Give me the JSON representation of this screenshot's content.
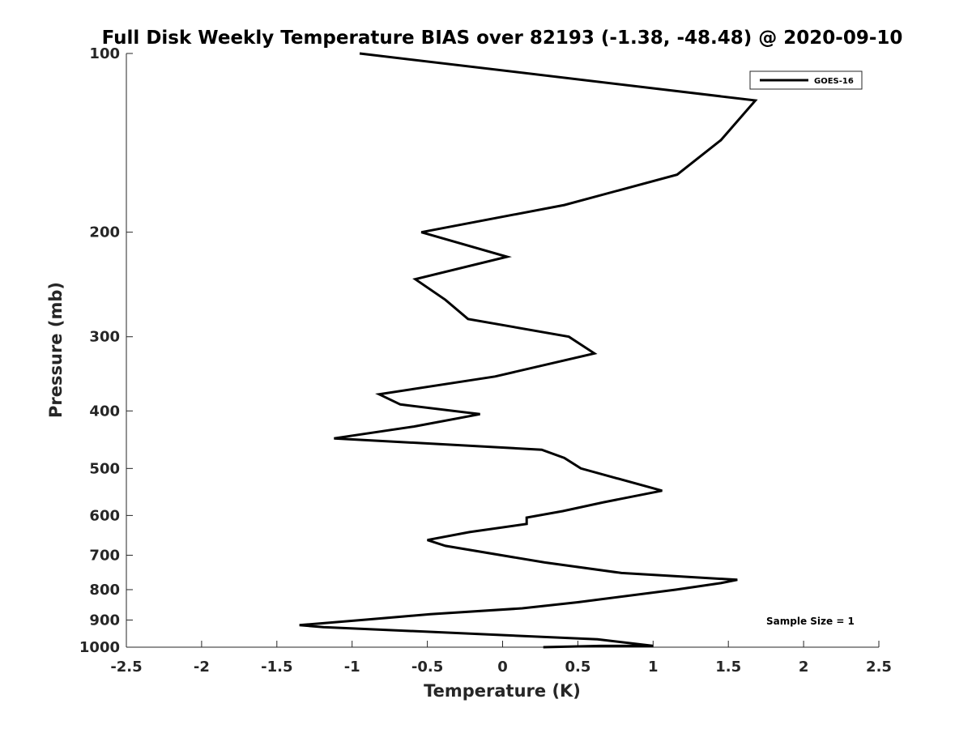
{
  "chart_data": {
    "type": "line",
    "title": "Full Disk Weekly Temperature BIAS over 82193 (-1.38, -48.48) @ 2020-09-10",
    "xlabel": "Temperature (K)",
    "ylabel": "Pressure (mb)",
    "xlim": [
      -2.5,
      2.5
    ],
    "ylim": [
      1000,
      100
    ],
    "y_scale": "log",
    "y_reversed": true,
    "grid": false,
    "xticks": [
      -2.5,
      -2,
      -1.5,
      -1,
      -0.5,
      0,
      0.5,
      1,
      1.5,
      2,
      2.5
    ],
    "xtick_labels": [
      "-2.5",
      "-2",
      "-1.5",
      "-1",
      "-0.5",
      "0",
      "0.5",
      "1",
      "1.5",
      "2",
      "2.5"
    ],
    "yticks": [
      100,
      200,
      300,
      400,
      500,
      600,
      700,
      800,
      900,
      1000
    ],
    "ytick_labels": [
      "100",
      "200",
      "300",
      "400",
      "500",
      "600",
      "700",
      "800",
      "900",
      "1000"
    ],
    "legend": {
      "position": "top-right",
      "entries": [
        "GOES-16"
      ]
    },
    "annotations": [
      "Sample Size = 1"
    ],
    "series": [
      {
        "name": "GOES-16",
        "color": "#000000",
        "points": [
          [
            -0.95,
            100
          ],
          [
            1.68,
            120
          ],
          [
            1.45,
            140
          ],
          [
            1.16,
            160
          ],
          [
            0.41,
            180
          ],
          [
            -0.54,
            200
          ],
          [
            0.03,
            220
          ],
          [
            -0.58,
            240
          ],
          [
            -0.38,
            260
          ],
          [
            -0.23,
            280
          ],
          [
            0.44,
            300
          ],
          [
            0.61,
            320
          ],
          [
            -0.05,
            350
          ],
          [
            -0.82,
            375
          ],
          [
            -0.68,
            390
          ],
          [
            -0.15,
            405
          ],
          [
            -0.59,
            425
          ],
          [
            -1.12,
            445
          ],
          [
            0.26,
            465
          ],
          [
            0.41,
            480
          ],
          [
            0.52,
            500
          ],
          [
            1.06,
            545
          ],
          [
            0.67,
            570
          ],
          [
            0.4,
            590
          ],
          [
            0.16,
            605
          ],
          [
            0.16,
            620
          ],
          [
            -0.22,
            640
          ],
          [
            -0.5,
            660
          ],
          [
            -0.38,
            675
          ],
          [
            0.28,
            720
          ],
          [
            0.79,
            750
          ],
          [
            1.56,
            770
          ],
          [
            1.45,
            780
          ],
          [
            1.15,
            800
          ],
          [
            0.5,
            840
          ],
          [
            0.13,
            860
          ],
          [
            -0.48,
            880
          ],
          [
            -0.94,
            900
          ],
          [
            -1.35,
            918
          ],
          [
            -1.19,
            925
          ],
          [
            0.63,
            970
          ],
          [
            1.0,
            995
          ],
          [
            0.65,
            995
          ],
          [
            0.27,
            1000
          ]
        ]
      }
    ]
  }
}
